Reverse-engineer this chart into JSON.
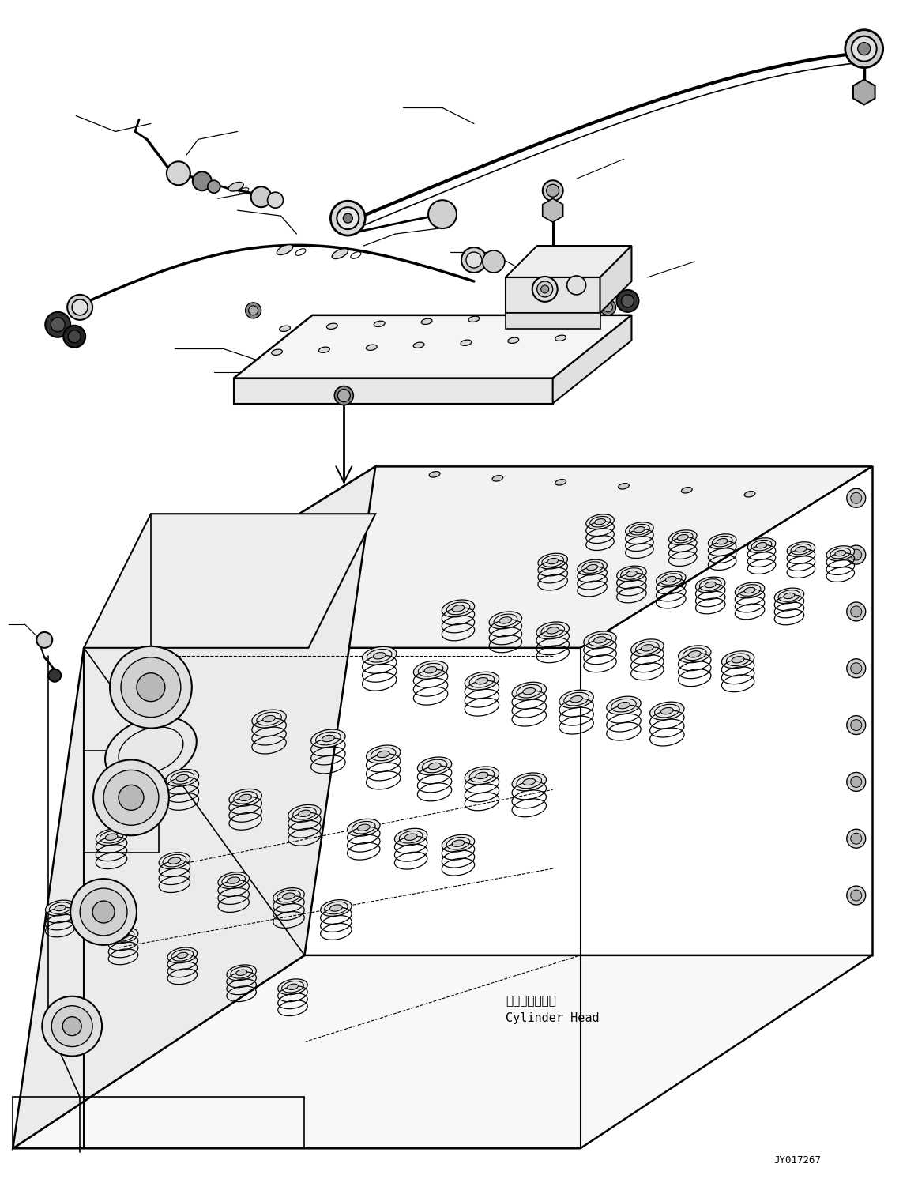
{
  "background_color": "#ffffff",
  "fig_width": 11.43,
  "fig_height": 14.92,
  "dpi": 100,
  "part_id": "JY017267",
  "label_cylinder_head_jp": "シリンダヘッド",
  "label_cylinder_head_en": "Cylinder Head"
}
